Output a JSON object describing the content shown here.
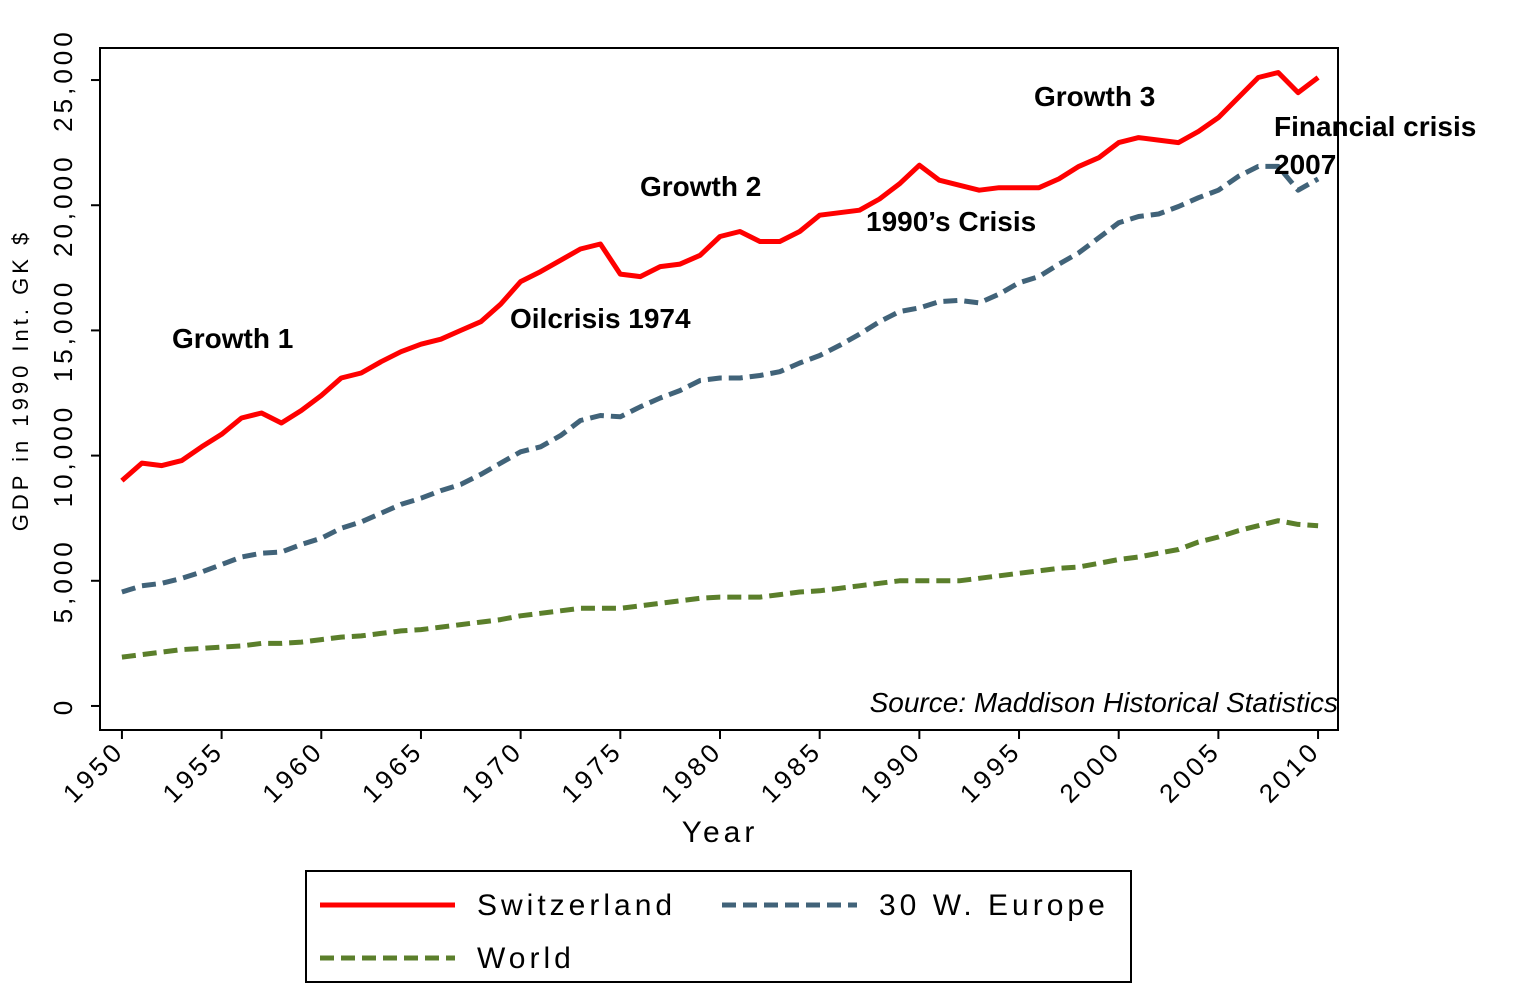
{
  "chart_data": {
    "type": "line",
    "x_label": "Year",
    "y_label": "GDP in 1990 Int. GK $",
    "source": "Source: Maddison Historical Statistics",
    "annotations": [
      "Growth 1",
      "Oilcrisis 1974",
      "Growth  2",
      "1990’s Crisis",
      "Growth  3",
      "Financial crisis",
      "2007"
    ],
    "x": [
      1950,
      1951,
      1952,
      1953,
      1954,
      1955,
      1956,
      1957,
      1958,
      1959,
      1960,
      1961,
      1962,
      1963,
      1964,
      1965,
      1966,
      1967,
      1968,
      1969,
      1970,
      1971,
      1972,
      1973,
      1974,
      1975,
      1976,
      1977,
      1978,
      1979,
      1980,
      1981,
      1982,
      1983,
      1984,
      1985,
      1986,
      1987,
      1988,
      1989,
      1990,
      1991,
      1992,
      1993,
      1994,
      1995,
      1996,
      1997,
      1998,
      1999,
      2000,
      2001,
      2002,
      2003,
      2004,
      2005,
      2006,
      2007,
      2008,
      2009,
      2010
    ],
    "series": [
      {
        "name": "Switzerland",
        "color": "#ff0000",
        "dashed": false,
        "values": [
          9000,
          9700,
          9600,
          9800,
          10350,
          10850,
          11500,
          11700,
          11300,
          11800,
          12400,
          13100,
          13300,
          13750,
          14150,
          14450,
          14650,
          15000,
          15350,
          16050,
          16950,
          17350,
          17800,
          18250,
          18450,
          17250,
          17150,
          17550,
          17650,
          18000,
          18750,
          18950,
          18550,
          18550,
          18950,
          19600,
          19700,
          19800,
          20250,
          20850,
          21600,
          21000,
          20800,
          20600,
          20700,
          20700,
          20700,
          21050,
          21550,
          21900,
          22500,
          22700,
          22600,
          22500,
          22950,
          23500,
          24300,
          25100,
          25300,
          24500,
          25100
        ]
      },
      {
        "name": "30 W. Europe",
        "color": "#416379",
        "dashed": true,
        "values": [
          4550,
          4800,
          4900,
          5100,
          5350,
          5650,
          5950,
          6100,
          6150,
          6450,
          6700,
          7100,
          7350,
          7700,
          8050,
          8300,
          8600,
          8850,
          9250,
          9700,
          10150,
          10350,
          10800,
          11400,
          11600,
          11550,
          11950,
          12300,
          12600,
          13000,
          13100,
          13100,
          13200,
          13350,
          13700,
          14000,
          14400,
          14850,
          15350,
          15750,
          15900,
          16150,
          16200,
          16100,
          16450,
          16900,
          17150,
          17650,
          18100,
          18700,
          19300,
          19550,
          19650,
          19950,
          20300,
          20600,
          21150,
          21550,
          21550,
          20600,
          21050
        ]
      },
      {
        "name": "World",
        "color": "#5b7f2b",
        "dashed": true,
        "values": [
          1950,
          2050,
          2150,
          2250,
          2300,
          2350,
          2400,
          2500,
          2500,
          2550,
          2650,
          2750,
          2800,
          2900,
          3000,
          3050,
          3150,
          3250,
          3350,
          3450,
          3600,
          3700,
          3800,
          3900,
          3900,
          3900,
          4000,
          4100,
          4200,
          4300,
          4350,
          4350,
          4350,
          4450,
          4550,
          4600,
          4700,
          4800,
          4900,
          5000,
          5000,
          5000,
          5000,
          5100,
          5200,
          5300,
          5400,
          5500,
          5550,
          5700,
          5850,
          5950,
          6100,
          6250,
          6550,
          6750,
          7000,
          7200,
          7400,
          7250,
          7200
        ]
      }
    ],
    "xlim": [
      1948.9,
      2011
    ],
    "ylim": [
      -960,
      26280
    ],
    "xticks": [
      1950,
      1955,
      1960,
      1965,
      1970,
      1975,
      1980,
      1985,
      1990,
      1995,
      2000,
      2005,
      2010
    ],
    "yticks": [
      0,
      {
        "value": 5000,
        "label": "5,000"
      },
      {
        "value": 10000,
        "label": "10,000"
      },
      {
        "value": 15000,
        "label": "15,000"
      },
      {
        "value": 20000,
        "label": "20,000"
      },
      {
        "value": 25000,
        "label": "25,000"
      }
    ],
    "grid": false
  }
}
